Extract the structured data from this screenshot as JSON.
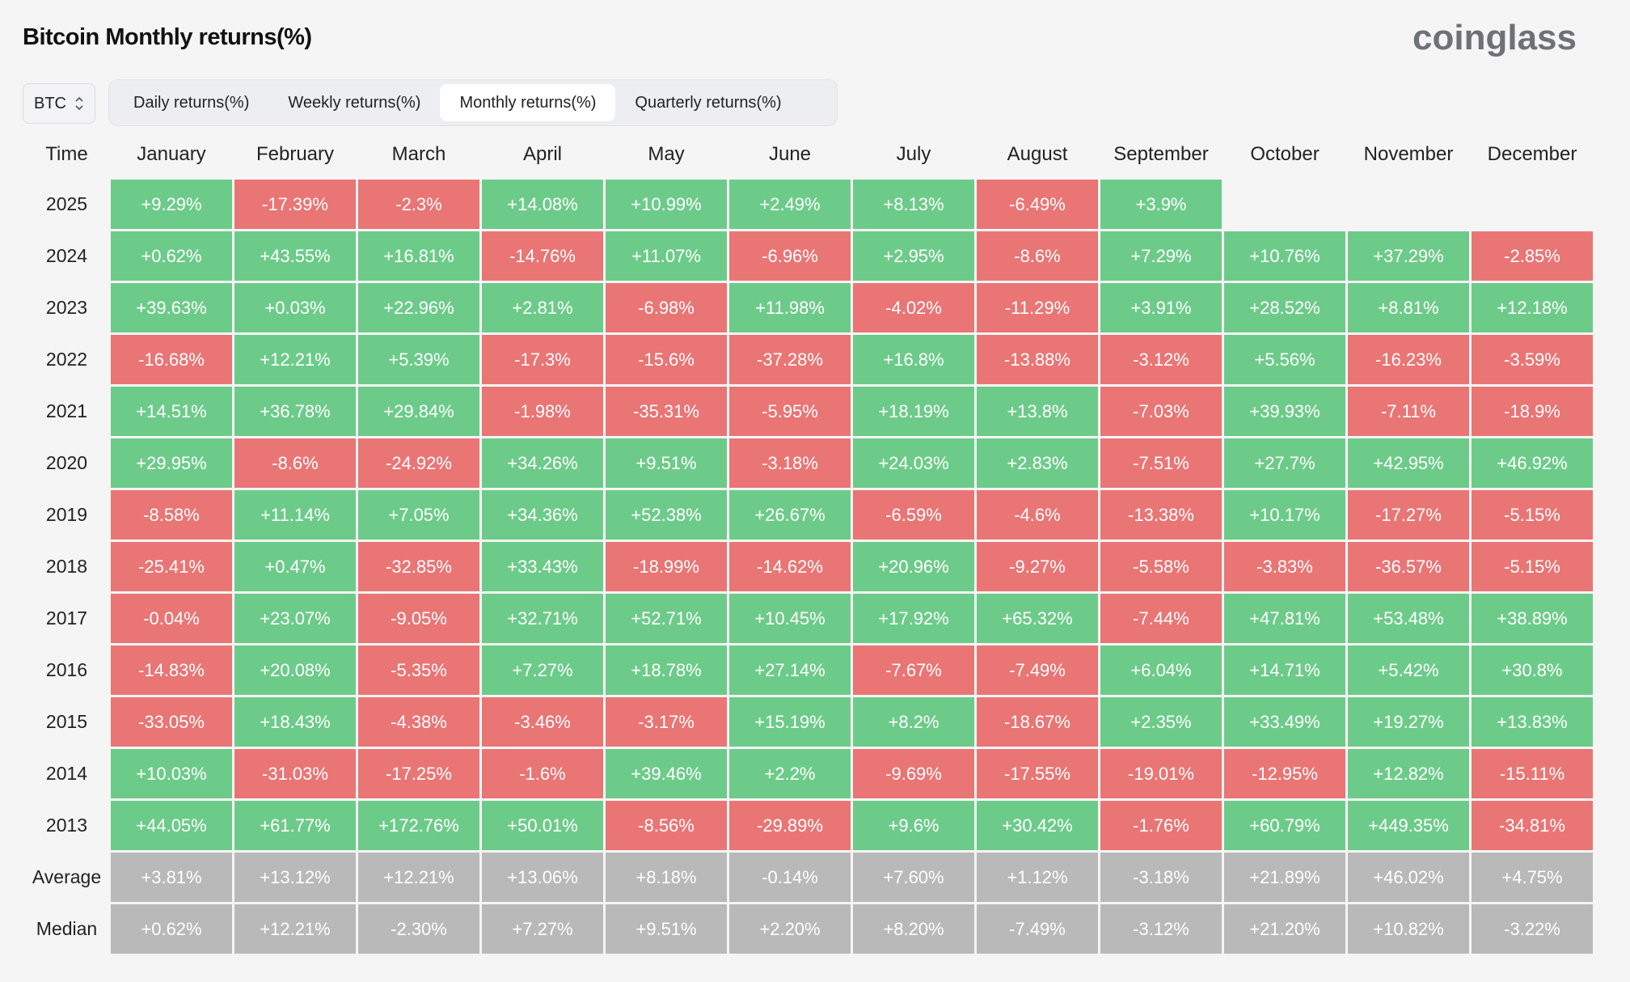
{
  "header": {
    "title": "Bitcoin Monthly returns(%)",
    "logo": "coinglass"
  },
  "asset_select": {
    "value": "BTC"
  },
  "tabs": [
    {
      "label": "Daily returns(%)",
      "active": false
    },
    {
      "label": "Weekly returns(%)",
      "active": false
    },
    {
      "label": "Monthly returns(%)",
      "active": true
    },
    {
      "label": "Quarterly returns(%)",
      "active": false
    }
  ],
  "colors": {
    "positive": "#6dcb8a",
    "negative": "#ea7575",
    "stat": "#b9b9b9"
  },
  "table": {
    "time_header": "Time",
    "months": [
      "January",
      "February",
      "March",
      "April",
      "May",
      "June",
      "July",
      "August",
      "September",
      "October",
      "November",
      "December"
    ],
    "rows": [
      {
        "label": "2025",
        "values": [
          "+9.29%",
          "-17.39%",
          "-2.3%",
          "+14.08%",
          "+10.99%",
          "+2.49%",
          "+8.13%",
          "-6.49%",
          "+3.9%"
        ]
      },
      {
        "label": "2024",
        "values": [
          "+0.62%",
          "+43.55%",
          "+16.81%",
          "-14.76%",
          "+11.07%",
          "-6.96%",
          "+2.95%",
          "-8.6%",
          "+7.29%",
          "+10.76%",
          "+37.29%",
          "-2.85%"
        ]
      },
      {
        "label": "2023",
        "values": [
          "+39.63%",
          "+0.03%",
          "+22.96%",
          "+2.81%",
          "-6.98%",
          "+11.98%",
          "-4.02%",
          "-11.29%",
          "+3.91%",
          "+28.52%",
          "+8.81%",
          "+12.18%"
        ]
      },
      {
        "label": "2022",
        "values": [
          "-16.68%",
          "+12.21%",
          "+5.39%",
          "-17.3%",
          "-15.6%",
          "-37.28%",
          "+16.8%",
          "-13.88%",
          "-3.12%",
          "+5.56%",
          "-16.23%",
          "-3.59%"
        ]
      },
      {
        "label": "2021",
        "values": [
          "+14.51%",
          "+36.78%",
          "+29.84%",
          "-1.98%",
          "-35.31%",
          "-5.95%",
          "+18.19%",
          "+13.8%",
          "-7.03%",
          "+39.93%",
          "-7.11%",
          "-18.9%"
        ]
      },
      {
        "label": "2020",
        "values": [
          "+29.95%",
          "-8.6%",
          "-24.92%",
          "+34.26%",
          "+9.51%",
          "-3.18%",
          "+24.03%",
          "+2.83%",
          "-7.51%",
          "+27.7%",
          "+42.95%",
          "+46.92%"
        ]
      },
      {
        "label": "2019",
        "values": [
          "-8.58%",
          "+11.14%",
          "+7.05%",
          "+34.36%",
          "+52.38%",
          "+26.67%",
          "-6.59%",
          "-4.6%",
          "-13.38%",
          "+10.17%",
          "-17.27%",
          "-5.15%"
        ]
      },
      {
        "label": "2018",
        "values": [
          "-25.41%",
          "+0.47%",
          "-32.85%",
          "+33.43%",
          "-18.99%",
          "-14.62%",
          "+20.96%",
          "-9.27%",
          "-5.58%",
          "-3.83%",
          "-36.57%",
          "-5.15%"
        ]
      },
      {
        "label": "2017",
        "values": [
          "-0.04%",
          "+23.07%",
          "-9.05%",
          "+32.71%",
          "+52.71%",
          "+10.45%",
          "+17.92%",
          "+65.32%",
          "-7.44%",
          "+47.81%",
          "+53.48%",
          "+38.89%"
        ]
      },
      {
        "label": "2016",
        "values": [
          "-14.83%",
          "+20.08%",
          "-5.35%",
          "+7.27%",
          "+18.78%",
          "+27.14%",
          "-7.67%",
          "-7.49%",
          "+6.04%",
          "+14.71%",
          "+5.42%",
          "+30.8%"
        ]
      },
      {
        "label": "2015",
        "values": [
          "-33.05%",
          "+18.43%",
          "-4.38%",
          "-3.46%",
          "-3.17%",
          "+15.19%",
          "+8.2%",
          "-18.67%",
          "+2.35%",
          "+33.49%",
          "+19.27%",
          "+13.83%"
        ]
      },
      {
        "label": "2014",
        "values": [
          "+10.03%",
          "-31.03%",
          "-17.25%",
          "-1.6%",
          "+39.46%",
          "+2.2%",
          "-9.69%",
          "-17.55%",
          "-19.01%",
          "-12.95%",
          "+12.82%",
          "-15.11%"
        ]
      },
      {
        "label": "2013",
        "values": [
          "+44.05%",
          "+61.77%",
          "+172.76%",
          "+50.01%",
          "-8.56%",
          "-29.89%",
          "+9.6%",
          "+30.42%",
          "-1.76%",
          "+60.79%",
          "+449.35%",
          "-34.81%"
        ]
      }
    ],
    "stats": [
      {
        "label": "Average",
        "values": [
          "+3.81%",
          "+13.12%",
          "+12.21%",
          "+13.06%",
          "+8.18%",
          "-0.14%",
          "+7.60%",
          "+1.12%",
          "-3.18%",
          "+21.89%",
          "+46.02%",
          "+4.75%"
        ]
      },
      {
        "label": "Median",
        "values": [
          "+0.62%",
          "+12.21%",
          "-2.30%",
          "+7.27%",
          "+9.51%",
          "+2.20%",
          "+8.20%",
          "-7.49%",
          "-3.12%",
          "+21.20%",
          "+10.82%",
          "-3.22%"
        ]
      }
    ]
  }
}
